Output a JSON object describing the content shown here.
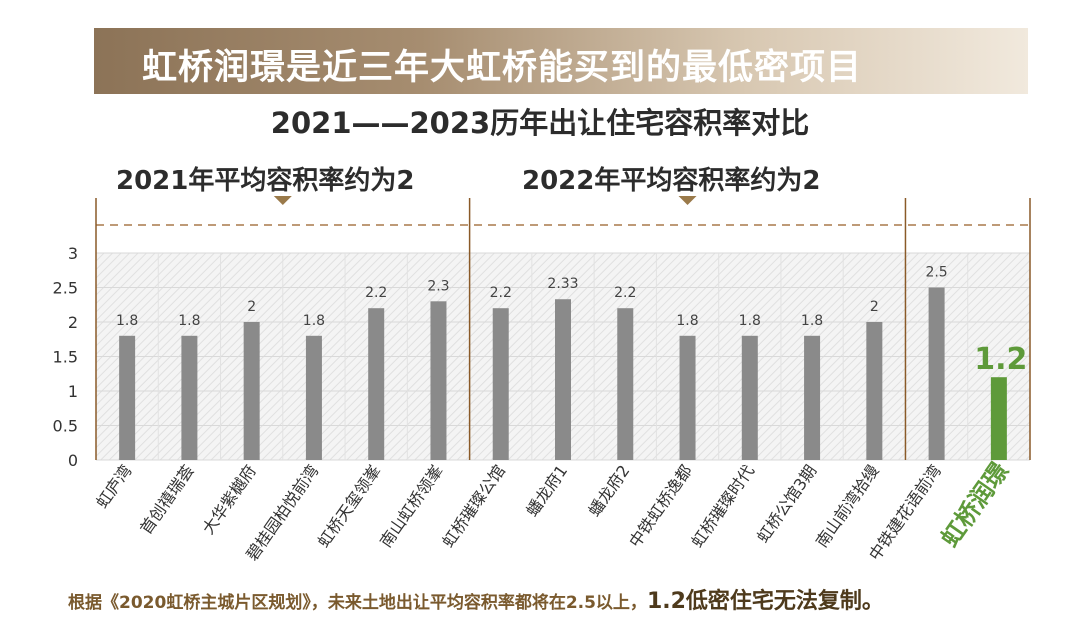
{
  "banner": {
    "title": "虹桥润璟是近三年大虹桥能买到的最低密项目"
  },
  "subtitle": "2021——2023历年出让住宅容积率对比",
  "periods": {
    "p2021": "2021年平均容积率约为2",
    "p2022": "2022年平均容积率约为2"
  },
  "footer": {
    "text": "根据《2020虹桥主城片区规划》，未来土地出让平均容积率都将在2.5以上，",
    "highlight": "1.2低密住宅无法复制。"
  },
  "colors": {
    "bar": "#8a8a8a",
    "highlight": "#5e9a3a",
    "divider": "#8a5a28",
    "dashed": "#a8794a",
    "marker": "#9a7a4a"
  },
  "chart_data": {
    "type": "bar",
    "title": "2021——2023历年出让住宅容积率对比",
    "xlabel": "",
    "ylabel": "",
    "ylim": [
      0,
      3
    ],
    "yticks": [
      "3",
      "2.5",
      "2",
      "1.5",
      "1",
      "0.5",
      "0"
    ],
    "categories": [
      "虹庐湾",
      "首创禧瑞荟",
      "大华紫樾府",
      "碧桂园柏悦前湾",
      "虹桥天玺领峯",
      "南山虹桥领峯",
      "虹桥璀璨公馆",
      "蟠龙府1",
      "蟠龙府2",
      "中铁虹桥逸都",
      "虹桥璀璨时代",
      "虹桥公馆3期",
      "南山前湾拾缦",
      "中铁建花语前湾",
      "虹桥润璟"
    ],
    "values": [
      1.8,
      1.8,
      2,
      1.8,
      2.2,
      2.3,
      2.2,
      2.33,
      2.2,
      1.8,
      1.8,
      1.8,
      2,
      2.5,
      1.2
    ],
    "value_labels": [
      "1.8",
      "1.8",
      "2",
      "1.8",
      "2.2",
      "2.3",
      "2.2",
      "2.33",
      "2.2",
      "1.8",
      "1.8",
      "1.8",
      "2",
      "2.5",
      "1.2"
    ],
    "groups": [
      "2021",
      "2021",
      "2021",
      "2021",
      "2021",
      "2021",
      "2022",
      "2022",
      "2022",
      "2022",
      "2022",
      "2022",
      "2022",
      "2023",
      "2023"
    ],
    "highlight_index": 14
  }
}
